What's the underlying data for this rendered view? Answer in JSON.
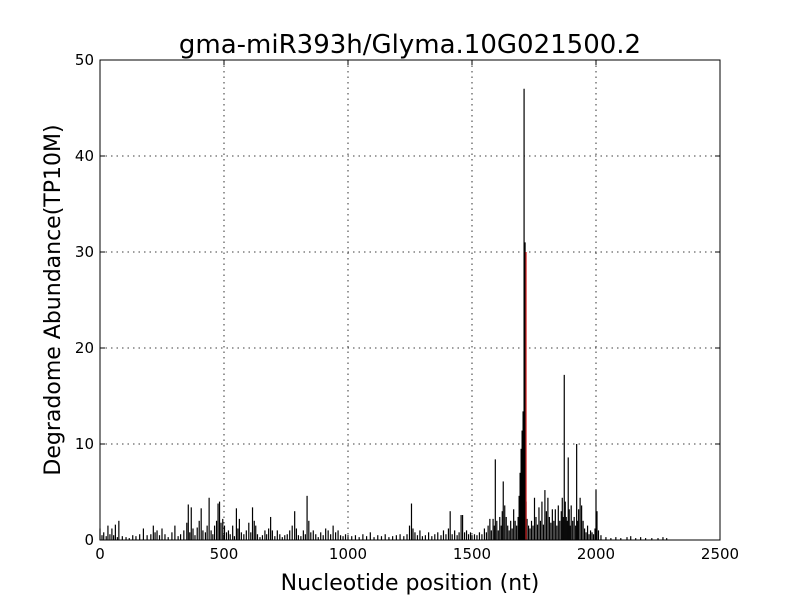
{
  "chart_data": {
    "type": "bar",
    "title": "gma-miR393h/Glyma.10G021500.2",
    "xlabel": "Nucleotide position (nt)",
    "ylabel": "Degradome Abundance(TP10M)",
    "xlim": [
      0,
      2500
    ],
    "ylim": [
      0,
      50
    ],
    "xticks": [
      0,
      500,
      1000,
      1500,
      2000,
      2500
    ],
    "yticks": [
      0,
      10,
      20,
      30,
      40,
      50
    ],
    "grid": true,
    "bar_color": "#000000",
    "highlight_color": "#d62728",
    "series": [
      {
        "points": [
          [
            0,
            1.2
          ],
          [
            8,
            0.5
          ],
          [
            15,
            0.8
          ],
          [
            25,
            0.4
          ],
          [
            32,
            1.5
          ],
          [
            40,
            0.6
          ],
          [
            48,
            1.2
          ],
          [
            55,
            0.5
          ],
          [
            62,
            1.6
          ],
          [
            70,
            0.3
          ],
          [
            76,
            2.0
          ],
          [
            90,
            0.4
          ],
          [
            105,
            0.3
          ],
          [
            118,
            0.2
          ],
          [
            132,
            0.5
          ],
          [
            145,
            0.4
          ],
          [
            160,
            0.6
          ],
          [
            175,
            1.2
          ],
          [
            190,
            0.5
          ],
          [
            205,
            0.6
          ],
          [
            215,
            1.5
          ],
          [
            222,
            0.8
          ],
          [
            230,
            1.0
          ],
          [
            240,
            0.5
          ],
          [
            250,
            1.2
          ],
          [
            262,
            0.6
          ],
          [
            275,
            0.3
          ],
          [
            290,
            0.8
          ],
          [
            302,
            1.5
          ],
          [
            315,
            0.4
          ],
          [
            325,
            0.6
          ],
          [
            338,
            1.0
          ],
          [
            350,
            1.8
          ],
          [
            356,
            3.7
          ],
          [
            362,
            0.8
          ],
          [
            368,
            3.4
          ],
          [
            375,
            1.2
          ],
          [
            383,
            0.5
          ],
          [
            392,
            1.3
          ],
          [
            400,
            2.0
          ],
          [
            408,
            3.3
          ],
          [
            415,
            1.0
          ],
          [
            425,
            0.8
          ],
          [
            432,
            1.5
          ],
          [
            440,
            4.4
          ],
          [
            448,
            1.0
          ],
          [
            455,
            0.6
          ],
          [
            462,
            1.5
          ],
          [
            470,
            2.0
          ],
          [
            476,
            3.8
          ],
          [
            482,
            4.0
          ],
          [
            488,
            1.8
          ],
          [
            495,
            2.2
          ],
          [
            502,
            1.5
          ],
          [
            510,
            0.8
          ],
          [
            518,
            1.0
          ],
          [
            525,
            0.6
          ],
          [
            535,
            1.5
          ],
          [
            542,
            0.4
          ],
          [
            550,
            3.3
          ],
          [
            556,
            1.2
          ],
          [
            562,
            2.2
          ],
          [
            570,
            0.8
          ],
          [
            580,
            0.6
          ],
          [
            590,
            1.0
          ],
          [
            600,
            1.8
          ],
          [
            608,
            0.8
          ],
          [
            615,
            3.4
          ],
          [
            622,
            2.0
          ],
          [
            628,
            1.5
          ],
          [
            635,
            0.6
          ],
          [
            645,
            0.3
          ],
          [
            655,
            0.5
          ],
          [
            665,
            1.0
          ],
          [
            672,
            0.6
          ],
          [
            680,
            1.2
          ],
          [
            688,
            2.4
          ],
          [
            695,
            1.0
          ],
          [
            705,
            0.4
          ],
          [
            715,
            1.0
          ],
          [
            725,
            0.6
          ],
          [
            735,
            0.3
          ],
          [
            745,
            0.5
          ],
          [
            755,
            0.6
          ],
          [
            765,
            1.0
          ],
          [
            775,
            1.5
          ],
          [
            785,
            3.0
          ],
          [
            792,
            1.2
          ],
          [
            800,
            0.5
          ],
          [
            810,
            0.4
          ],
          [
            820,
            1.0
          ],
          [
            828,
            0.6
          ],
          [
            835,
            4.6
          ],
          [
            842,
            2.0
          ],
          [
            850,
            0.8
          ],
          [
            860,
            1.0
          ],
          [
            870,
            0.6
          ],
          [
            880,
            0.3
          ],
          [
            890,
            0.8
          ],
          [
            900,
            0.5
          ],
          [
            910,
            1.2
          ],
          [
            920,
            1.0
          ],
          [
            930,
            0.6
          ],
          [
            940,
            1.5
          ],
          [
            950,
            0.8
          ],
          [
            960,
            1.0
          ],
          [
            970,
            0.5
          ],
          [
            980,
            0.4
          ],
          [
            990,
            0.6
          ],
          [
            1000,
            0.3
          ],
          [
            1015,
            0.4
          ],
          [
            1030,
            0.5
          ],
          [
            1045,
            0.3
          ],
          [
            1060,
            0.6
          ],
          [
            1075,
            0.4
          ],
          [
            1090,
            0.8
          ],
          [
            1105,
            0.3
          ],
          [
            1120,
            0.5
          ],
          [
            1135,
            0.4
          ],
          [
            1150,
            0.6
          ],
          [
            1165,
            0.3
          ],
          [
            1180,
            0.4
          ],
          [
            1195,
            0.5
          ],
          [
            1210,
            0.6
          ],
          [
            1225,
            0.4
          ],
          [
            1238,
            0.6
          ],
          [
            1248,
            1.5
          ],
          [
            1256,
            3.8
          ],
          [
            1262,
            1.2
          ],
          [
            1270,
            0.8
          ],
          [
            1280,
            0.5
          ],
          [
            1290,
            1.0
          ],
          [
            1300,
            0.4
          ],
          [
            1312,
            0.5
          ],
          [
            1325,
            0.8
          ],
          [
            1338,
            0.4
          ],
          [
            1350,
            0.6
          ],
          [
            1362,
            0.8
          ],
          [
            1375,
            0.5
          ],
          [
            1385,
            1.0
          ],
          [
            1395,
            0.6
          ],
          [
            1405,
            1.2
          ],
          [
            1412,
            3.0
          ],
          [
            1420,
            0.6
          ],
          [
            1430,
            1.0
          ],
          [
            1440,
            0.5
          ],
          [
            1448,
            0.8
          ],
          [
            1456,
            2.6
          ],
          [
            1462,
            2.6
          ],
          [
            1470,
            0.8
          ],
          [
            1478,
            1.0
          ],
          [
            1486,
            0.6
          ],
          [
            1494,
            0.8
          ],
          [
            1500,
            0.4
          ],
          [
            1510,
            0.6
          ],
          [
            1520,
            0.5
          ],
          [
            1530,
            0.8
          ],
          [
            1540,
            0.6
          ],
          [
            1550,
            1.2
          ],
          [
            1558,
            0.8
          ],
          [
            1565,
            1.5
          ],
          [
            1572,
            2.2
          ],
          [
            1578,
            1.0
          ],
          [
            1585,
            2.2
          ],
          [
            1590,
            1.5
          ],
          [
            1594,
            8.4
          ],
          [
            1600,
            2.0
          ],
          [
            1606,
            1.0
          ],
          [
            1612,
            2.4
          ],
          [
            1618,
            1.5
          ],
          [
            1622,
            3.0
          ],
          [
            1626,
            6.1
          ],
          [
            1632,
            3.6
          ],
          [
            1638,
            2.4
          ],
          [
            1644,
            1.5
          ],
          [
            1650,
            1.0
          ],
          [
            1656,
            2.0
          ],
          [
            1662,
            1.2
          ],
          [
            1668,
            3.2
          ],
          [
            1674,
            2.0
          ],
          [
            1680,
            1.5
          ],
          [
            1686,
            2.4
          ],
          [
            1690,
            4.6
          ],
          [
            1694,
            7.0
          ],
          [
            1698,
            9.5
          ],
          [
            1702,
            11.4
          ],
          [
            1706,
            13.4
          ],
          [
            1710,
            47.0
          ],
          [
            1714,
            31.0
          ],
          [
            1718,
            4.0
          ],
          [
            1722,
            2.2
          ],
          [
            1728,
            1.5
          ],
          [
            1734,
            1.2
          ],
          [
            1740,
            2.0
          ],
          [
            1746,
            1.5
          ],
          [
            1752,
            4.4
          ],
          [
            1758,
            2.4
          ],
          [
            1764,
            1.6
          ],
          [
            1770,
            3.4
          ],
          [
            1776,
            2.0
          ],
          [
            1782,
            4.0
          ],
          [
            1788,
            1.6
          ],
          [
            1794,
            5.2
          ],
          [
            1800,
            3.0
          ],
          [
            1806,
            4.4
          ],
          [
            1812,
            2.4
          ],
          [
            1818,
            1.8
          ],
          [
            1824,
            3.2
          ],
          [
            1830,
            2.0
          ],
          [
            1836,
            3.2
          ],
          [
            1842,
            1.5
          ],
          [
            1848,
            3.6
          ],
          [
            1854,
            2.0
          ],
          [
            1860,
            3.0
          ],
          [
            1864,
            4.4
          ],
          [
            1868,
            2.4
          ],
          [
            1872,
            17.2
          ],
          [
            1876,
            4.0
          ],
          [
            1880,
            2.4
          ],
          [
            1884,
            2.0
          ],
          [
            1888,
            8.6
          ],
          [
            1892,
            3.2
          ],
          [
            1896,
            1.5
          ],
          [
            1900,
            3.6
          ],
          [
            1906,
            2.0
          ],
          [
            1912,
            2.4
          ],
          [
            1918,
            1.5
          ],
          [
            1922,
            10.0
          ],
          [
            1926,
            2.0
          ],
          [
            1930,
            3.2
          ],
          [
            1936,
            4.4
          ],
          [
            1942,
            3.6
          ],
          [
            1948,
            2.0
          ],
          [
            1954,
            1.2
          ],
          [
            1960,
            0.8
          ],
          [
            1966,
            1.5
          ],
          [
            1972,
            0.6
          ],
          [
            1978,
            1.0
          ],
          [
            1984,
            0.8
          ],
          [
            1990,
            0.6
          ],
          [
            1996,
            1.2
          ],
          [
            2000,
            5.2
          ],
          [
            2004,
            3.0
          ],
          [
            2010,
            1.0
          ],
          [
            2020,
            0.5
          ],
          [
            2040,
            0.3
          ],
          [
            2060,
            0.2
          ],
          [
            2080,
            0.3
          ],
          [
            2100,
            0.2
          ],
          [
            2125,
            0.3
          ],
          [
            2140,
            0.4
          ],
          [
            2160,
            0.2
          ],
          [
            2180,
            0.3
          ],
          [
            2200,
            0.2
          ],
          [
            2225,
            0.2
          ],
          [
            2250,
            0.2
          ],
          [
            2270,
            0.3
          ],
          [
            2285,
            0.2
          ]
        ]
      },
      {
        "points": [
          [
            1718,
            30.0
          ]
        ],
        "highlight": true
      }
    ]
  }
}
